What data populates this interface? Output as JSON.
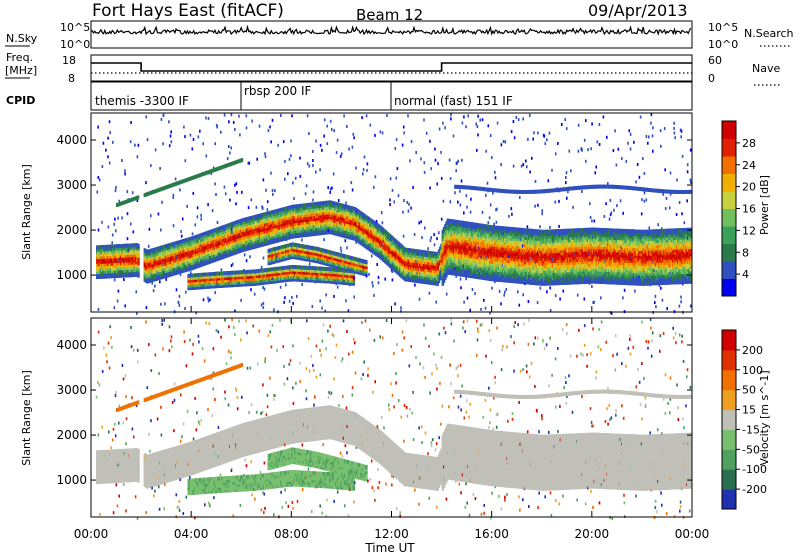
{
  "header": {
    "title": "Fort Hays East (fitACF)",
    "beam": "Beam 12",
    "date": "09/Apr/2013"
  },
  "side_labels": {
    "nsky": "N.Sky",
    "nsearch": "N.Search",
    "freq_line1": "Freq.",
    "freq_line2": "[MHz]",
    "nave": "Nave",
    "cpid": "CPID"
  },
  "noise_panel": {
    "top_tick": "10^5",
    "bottom_tick": "10^0"
  },
  "freq_panel": {
    "left_ticks": [
      "18",
      "8"
    ],
    "right_ticks": [
      "60",
      "0"
    ]
  },
  "cpid_panel": {
    "segments": [
      {
        "label": "themis -3300 IF",
        "start_hour": 0,
        "end_hour": 6
      },
      {
        "label": "rbsp 200 IF",
        "start_hour": 6,
        "end_hour": 12
      },
      {
        "label": "normal (fast) 151 IF",
        "start_hour": 12,
        "end_hour": 24
      }
    ]
  },
  "chart_data": [
    {
      "type": "heatmap",
      "panel": "power",
      "ylabel": "Slant Range [km]",
      "ylim": [
        180,
        4600
      ],
      "yticks": [
        1000,
        2000,
        3000,
        4000
      ],
      "xlim": [
        0,
        24
      ],
      "colorbar": {
        "label": "Power [dB]",
        "ticks": [
          "28",
          "24",
          "20",
          "16",
          "12",
          "8",
          "4"
        ],
        "colors": [
          "#0000ee",
          "#3050c0",
          "#2a7a4a",
          "#3aa05a",
          "#70c060",
          "#c8d040",
          "#f0b000",
          "#f07000",
          "#e02000",
          "#d00000"
        ]
      },
      "features": [
        {
          "name": "main-band",
          "points": [
            [
              0.2,
              1350
            ],
            [
              1.8,
              1400
            ],
            [
              2.2,
              1250
            ],
            [
              4,
              1550
            ],
            [
              6,
              1950
            ],
            [
              8,
              2250
            ],
            [
              9.5,
              2350
            ],
            [
              10.5,
              2200
            ],
            [
              11.5,
              1800
            ],
            [
              12.5,
              1300
            ],
            [
              13.8,
              1200
            ],
            [
              14.2,
              1700
            ],
            [
              16,
              1550
            ],
            [
              18,
              1450
            ],
            [
              20,
              1500
            ],
            [
              22,
              1450
            ],
            [
              24,
              1500
            ]
          ]
        },
        {
          "name": "lower-band",
          "points": [
            [
              7,
              1450
            ],
            [
              8,
              1600
            ],
            [
              9,
              1500
            ],
            [
              10,
              1350
            ],
            [
              11,
              1200
            ]
          ]
        },
        {
          "name": "near-band",
          "points": [
            [
              3.8,
              900
            ],
            [
              5,
              950
            ],
            [
              6.5,
              1000
            ],
            [
              8,
              1100
            ],
            [
              9.5,
              1050
            ],
            [
              10.5,
              1000
            ]
          ]
        }
      ]
    },
    {
      "type": "heatmap",
      "panel": "velocity",
      "ylabel": "Slant Range [km]",
      "xlabel": "Time UT",
      "ylim": [
        180,
        4600
      ],
      "yticks": [
        1000,
        2000,
        3000,
        4000
      ],
      "xlim": [
        0,
        24
      ],
      "xticks": [
        "00:00",
        "04:00",
        "08:00",
        "12:00",
        "16:00",
        "20:00",
        "00:00"
      ],
      "colorbar": {
        "label": "Velocity [m s^-1]",
        "ticks": [
          "200",
          "100",
          "50",
          "15",
          "-15",
          "-50",
          "-100",
          "-200"
        ],
        "colors": [
          "#2030b0",
          "#2a7050",
          "#50a060",
          "#78c070",
          "#c0c0b8",
          "#f0a020",
          "#f07000",
          "#e03000",
          "#d00000"
        ]
      }
    }
  ]
}
